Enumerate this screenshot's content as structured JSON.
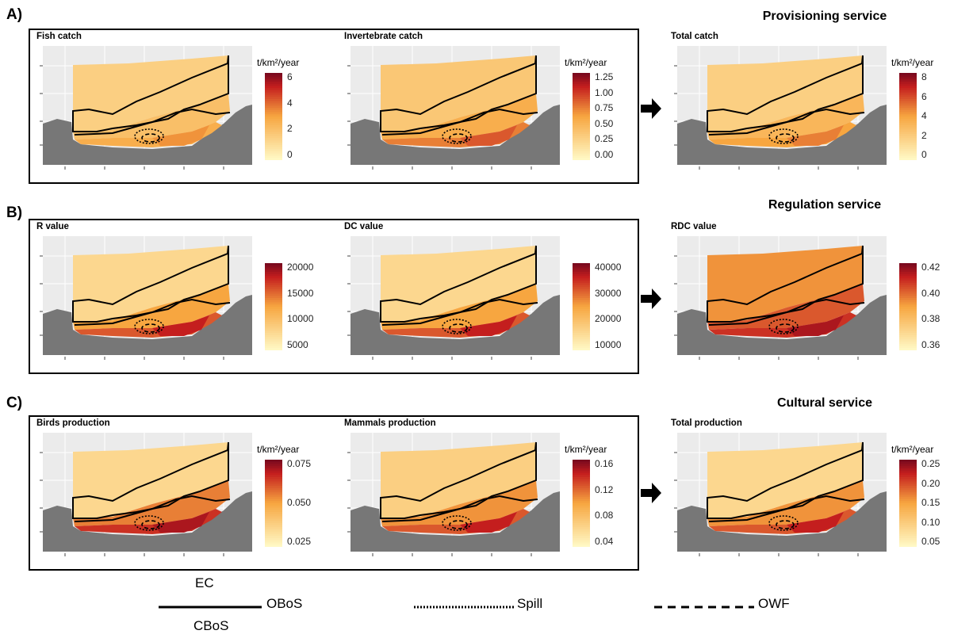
{
  "rows": [
    {
      "id": "A",
      "label": "A)",
      "service_title": "Provisioning service",
      "panels": [
        {
          "title": "Fish catch",
          "unit": "t/km²/year",
          "ticks": [
            "6",
            "4",
            "2",
            "0"
          ],
          "levels": [
            0.25,
            0.35,
            0.45,
            0.55
          ]
        },
        {
          "title": "Invertebrate catch",
          "unit": "t/km²/year",
          "ticks": [
            "1.25",
            "1.00",
            "0.75",
            "0.50",
            "0.25",
            "0.00"
          ],
          "levels": [
            0.3,
            0.45,
            0.6,
            0.7
          ]
        },
        {
          "title": "Total catch",
          "unit": "t/km²/year",
          "ticks": [
            "8",
            "6",
            "4",
            "2",
            "0"
          ],
          "levels": [
            0.25,
            0.4,
            0.5,
            0.6
          ]
        }
      ]
    },
    {
      "id": "B",
      "label": "B)",
      "service_title": "Regulation service",
      "panels": [
        {
          "title": "R value",
          "unit": "",
          "ticks": [
            "20000",
            "15000",
            "10000",
            "5000"
          ],
          "levels": [
            0.2,
            0.5,
            0.7,
            0.85
          ]
        },
        {
          "title": "DC value",
          "unit": "",
          "ticks": [
            "40000",
            "30000",
            "20000",
            "10000"
          ],
          "levels": [
            0.2,
            0.5,
            0.7,
            0.85
          ]
        },
        {
          "title": "RDC value",
          "unit": "",
          "ticks": [
            "0.42",
            "0.40",
            "0.38",
            "0.36"
          ],
          "levels": [
            0.55,
            0.7,
            0.8,
            0.9
          ]
        }
      ]
    },
    {
      "id": "C",
      "label": "C)",
      "service_title": "Cultural service",
      "panels": [
        {
          "title": "Birds production",
          "unit": "t/km²/year",
          "ticks": [
            "0.075",
            "0.050",
            "0.025"
          ],
          "levels": [
            0.2,
            0.6,
            0.8,
            0.9
          ]
        },
        {
          "title": "Mammals production",
          "unit": "t/km²/year",
          "ticks": [
            "0.16",
            "0.12",
            "0.08",
            "0.04"
          ],
          "levels": [
            0.25,
            0.55,
            0.7,
            0.85
          ]
        },
        {
          "title": "Total production",
          "unit": "t/km²/year",
          "ticks": [
            "0.25",
            "0.20",
            "0.15",
            "0.10",
            "0.05"
          ],
          "levels": [
            0.2,
            0.55,
            0.7,
            0.85
          ]
        }
      ]
    }
  ],
  "legend": {
    "ec": "EC",
    "oboS": "OBoS",
    "cbos": "CBoS",
    "spill": "Spill",
    "owf": "OWF"
  },
  "colors": {
    "low": "#fff8c4",
    "mid": "#f7a640",
    "high": "#c41e1e",
    "top": "#7a0a1e",
    "land": "#777777",
    "panel_bg": "#ebebeb",
    "grid": "#ffffff"
  }
}
